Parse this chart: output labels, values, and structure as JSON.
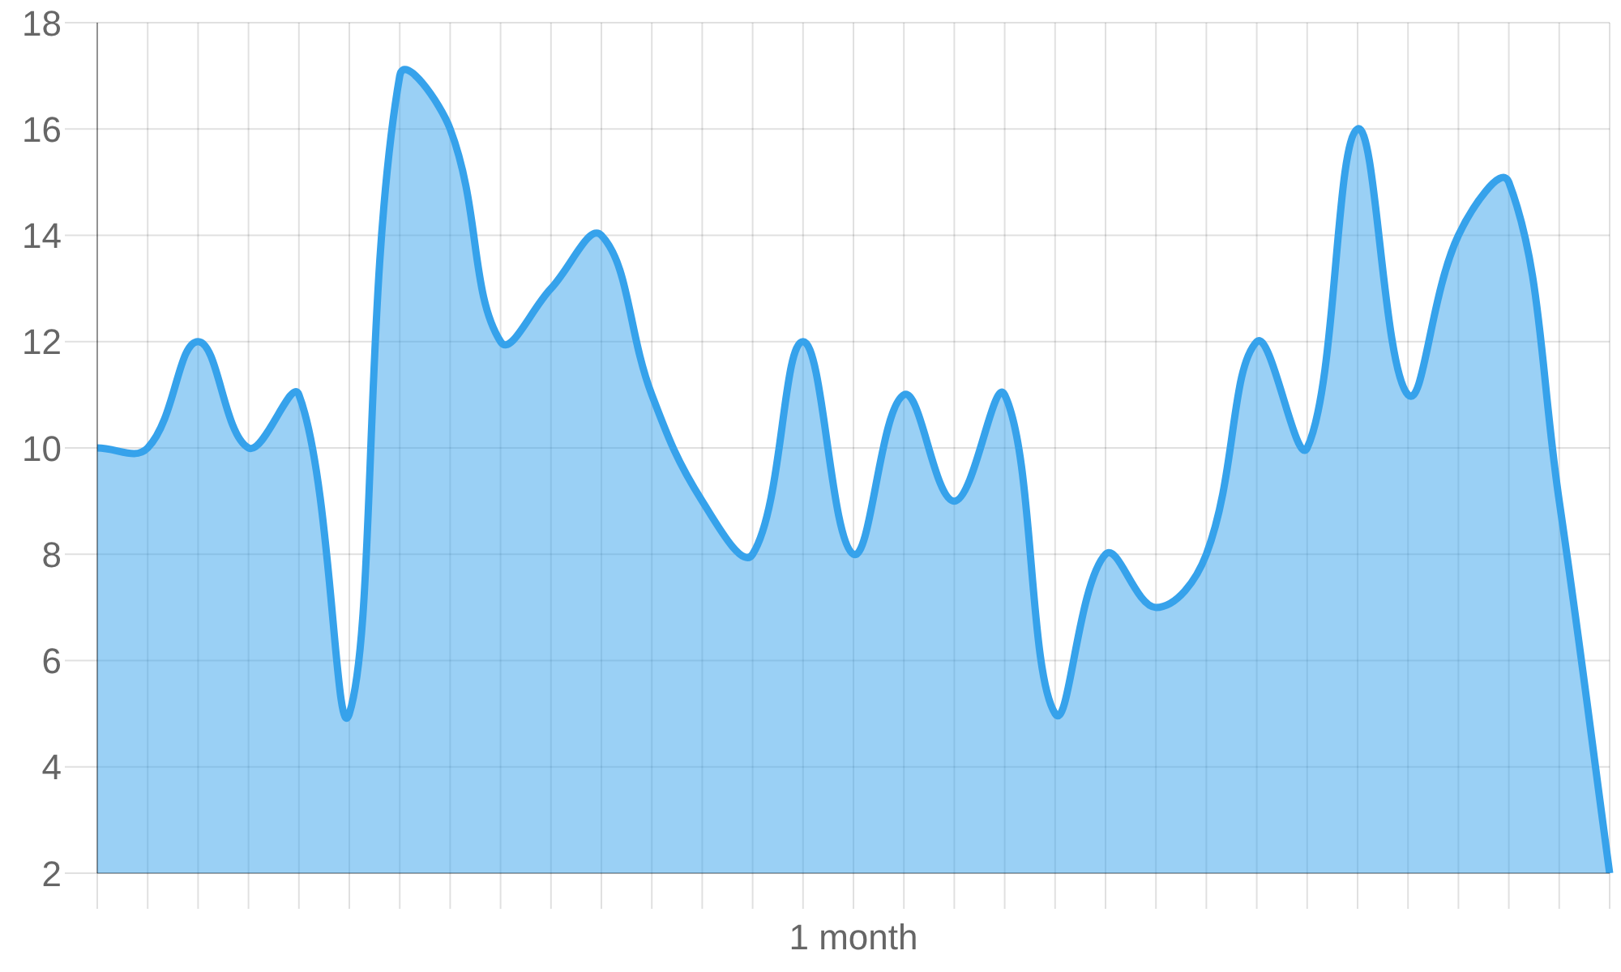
{
  "chart_data": {
    "type": "area",
    "xlabel": "1 month",
    "categories": [
      null,
      null,
      null,
      null,
      null,
      null,
      null,
      null,
      null,
      null,
      null,
      null,
      null,
      null,
      null,
      null,
      null,
      null,
      null,
      null,
      null,
      null,
      null,
      null,
      null,
      null,
      null,
      null,
      null,
      null,
      null
    ],
    "series": [
      {
        "color": "#36a2eb",
        "values": [
          10,
          10,
          12,
          10,
          11,
          5,
          17,
          16,
          12,
          13,
          14,
          11,
          9,
          8,
          12,
          8,
          11,
          9,
          11,
          5,
          8,
          7,
          8,
          12,
          10,
          16,
          11,
          14,
          15,
          9,
          2
        ]
      }
    ],
    "ylim": [
      2,
      18
    ],
    "yticks": [
      2,
      4,
      6,
      8,
      10,
      12,
      14,
      16,
      18
    ],
    "grid": true
  }
}
